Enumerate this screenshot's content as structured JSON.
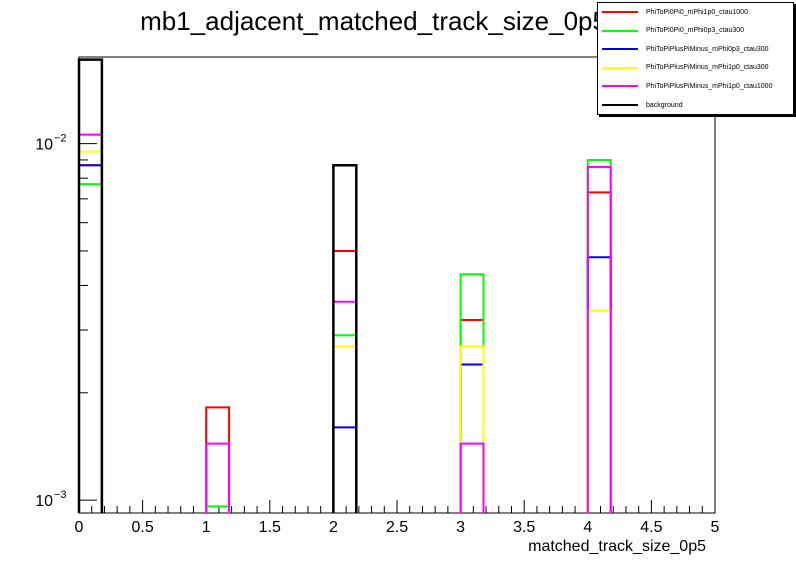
{
  "chart_data": {
    "type": "bar",
    "title": "mb1_adjacent_matched_track_size_0p5_0",
    "xlabel": "matched_track_size_0p5",
    "ylabel": "",
    "xlim": [
      0,
      5
    ],
    "ylim": [
      0.00092,
      0.0175
    ],
    "yscale": "log",
    "grid": false,
    "legend_position": "top-right",
    "x_tick_labels": [
      "0",
      "0.5",
      "1",
      "1.5",
      "2",
      "2.5",
      "3",
      "3.5",
      "4",
      "4.5",
      "5"
    ],
    "y_tick_labels": [
      {
        "base": "10",
        "exp": "−2",
        "value": 0.01
      },
      {
        "base": "10",
        "exp": "−3",
        "value": 0.001
      }
    ],
    "bin_edges": [
      [
        0,
        0.18
      ],
      [
        1,
        1.18
      ],
      [
        2,
        2.18
      ],
      [
        3,
        3.18
      ],
      [
        4,
        4.18
      ]
    ],
    "series": [
      {
        "name": "PhiToPi0Pi0_mPhi1p0_ctau1000",
        "color": "#ff0000",
        "values": [
          0.0087,
          0.00182,
          0.005,
          0.0032,
          0.0073
        ]
      },
      {
        "name": "PhiToPi0Pi0_mPhi0p3_ctau300",
        "color": "#00ff00",
        "values": [
          0.0077,
          0.00096,
          0.0029,
          0.0043,
          0.009
        ]
      },
      {
        "name": "PhiToPiPlusPiMinus_mPhi0p3_ctau300",
        "color": "#0000ff",
        "values": [
          0.0087,
          0.0,
          0.0016,
          0.0024,
          0.0048
        ]
      },
      {
        "name": "PhiToPiPlusPiMinus_mPhi1p0_ctau300",
        "color": "#ffff00",
        "values": [
          0.0095,
          0.0,
          0.0027,
          0.0027,
          0.0034
        ]
      },
      {
        "name": "PhiToPiPlusPiMinus_mPhi1p0_ctau1000",
        "color": "#ff00ff",
        "values": [
          0.0106,
          0.00144,
          0.0036,
          0.00144,
          0.0086
        ]
      },
      {
        "name": "background",
        "color": "#000000",
        "values": [
          0.0172,
          0.0,
          0.0087,
          0.0,
          0.0
        ]
      }
    ]
  }
}
